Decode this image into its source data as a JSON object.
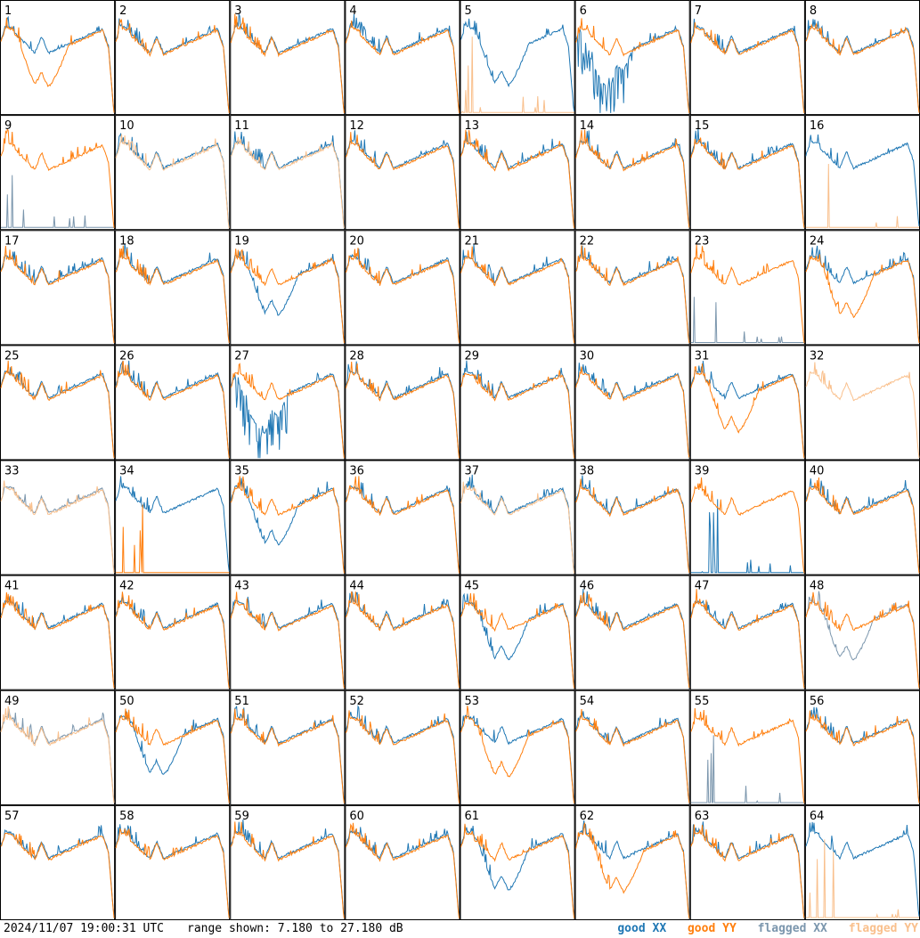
{
  "footer": {
    "timestamp": "2024/11/07 19:00:31 UTC",
    "range_text": "range shown: 7.180 to 27.180 dB"
  },
  "legend": [
    {
      "label": "good XX",
      "color": "#1f77b4"
    },
    {
      "label": "good YY",
      "color": "#ff7f0e"
    },
    {
      "label": "flagged XX",
      "color": "#7b96ad"
    },
    {
      "label": "flagged YY",
      "color": "#f9c08d"
    }
  ],
  "chart_data": {
    "type": "line",
    "grid": {
      "rows": 8,
      "cols": 8
    },
    "ylim": [
      7.18,
      27.18
    ],
    "yunit": "dB",
    "series_styles": {
      "good_xx": "#1f77b4",
      "good_yy": "#ff7f0e",
      "flagged_xx": "#7b96ad",
      "flagged_yy": "#f9c08d"
    },
    "panels": [
      {
        "id": 1,
        "xx": "normal",
        "yy": "dip"
      },
      {
        "id": 2,
        "xx": "normal",
        "yy": "normal"
      },
      {
        "id": 3,
        "xx": "normal",
        "yy": "normal"
      },
      {
        "id": 4,
        "xx": "normal",
        "yy": "normal"
      },
      {
        "id": 5,
        "xx": "dip",
        "yy": "flagged_flat"
      },
      {
        "id": 6,
        "xx": "dip_noisy",
        "yy": "normal"
      },
      {
        "id": 7,
        "xx": "normal",
        "yy": "normal"
      },
      {
        "id": 8,
        "xx": "normal",
        "yy": "normal"
      },
      {
        "id": 9,
        "xx": "flagged_flat",
        "yy": "normal"
      },
      {
        "id": 10,
        "xx": "normal",
        "yy": "flagged_normal"
      },
      {
        "id": 11,
        "xx": "normal",
        "yy": "flagged_normal"
      },
      {
        "id": 12,
        "xx": "normal",
        "yy": "normal"
      },
      {
        "id": 13,
        "xx": "normal",
        "yy": "normal"
      },
      {
        "id": 14,
        "xx": "normal",
        "yy": "normal"
      },
      {
        "id": 15,
        "xx": "normal",
        "yy": "normal"
      },
      {
        "id": 16,
        "xx": "normal",
        "yy": "flagged_flat"
      },
      {
        "id": 17,
        "xx": "normal",
        "yy": "normal"
      },
      {
        "id": 18,
        "xx": "normal",
        "yy": "normal"
      },
      {
        "id": 19,
        "xx": "dip",
        "yy": "normal"
      },
      {
        "id": 20,
        "xx": "normal",
        "yy": "normal"
      },
      {
        "id": 21,
        "xx": "normal",
        "yy": "normal"
      },
      {
        "id": 22,
        "xx": "normal",
        "yy": "normal"
      },
      {
        "id": 23,
        "xx": "flagged_flat",
        "yy": "normal"
      },
      {
        "id": 24,
        "xx": "normal",
        "yy": "dip"
      },
      {
        "id": 25,
        "xx": "normal",
        "yy": "normal"
      },
      {
        "id": 26,
        "xx": "normal",
        "yy": "normal"
      },
      {
        "id": 27,
        "xx": "dip_noisy",
        "yy": "normal"
      },
      {
        "id": 28,
        "xx": "normal",
        "yy": "normal"
      },
      {
        "id": 29,
        "xx": "normal",
        "yy": "normal"
      },
      {
        "id": 30,
        "xx": "normal",
        "yy": "normal"
      },
      {
        "id": 31,
        "xx": "normal",
        "yy": "dip"
      },
      {
        "id": 32,
        "xx": "none",
        "yy": "flagged_normal"
      },
      {
        "id": 33,
        "xx": "flagged_normal",
        "yy": "flagged_normal"
      },
      {
        "id": 34,
        "xx": "normal",
        "yy": "flat"
      },
      {
        "id": 35,
        "xx": "dip",
        "yy": "normal"
      },
      {
        "id": 36,
        "xx": "normal",
        "yy": "normal"
      },
      {
        "id": 37,
        "xx": "normal",
        "yy": "flagged_normal"
      },
      {
        "id": 38,
        "xx": "normal",
        "yy": "normal"
      },
      {
        "id": 39,
        "xx": "flat",
        "yy": "normal"
      },
      {
        "id": 40,
        "xx": "normal",
        "yy": "normal"
      },
      {
        "id": 41,
        "xx": "normal",
        "yy": "normal"
      },
      {
        "id": 42,
        "xx": "normal",
        "yy": "normal"
      },
      {
        "id": 43,
        "xx": "normal",
        "yy": "normal"
      },
      {
        "id": 44,
        "xx": "normal",
        "yy": "normal"
      },
      {
        "id": 45,
        "xx": "dip",
        "yy": "normal"
      },
      {
        "id": 46,
        "xx": "normal",
        "yy": "normal"
      },
      {
        "id": 47,
        "xx": "normal",
        "yy": "normal"
      },
      {
        "id": 48,
        "xx": "flagged_dip",
        "yy": "normal"
      },
      {
        "id": 49,
        "xx": "flagged_normal",
        "yy": "flagged_normal"
      },
      {
        "id": 50,
        "xx": "dip",
        "yy": "normal"
      },
      {
        "id": 51,
        "xx": "normal",
        "yy": "normal"
      },
      {
        "id": 52,
        "xx": "normal",
        "yy": "normal"
      },
      {
        "id": 53,
        "xx": "normal",
        "yy": "dip"
      },
      {
        "id": 54,
        "xx": "normal",
        "yy": "normal"
      },
      {
        "id": 55,
        "xx": "flagged_flat",
        "yy": "normal"
      },
      {
        "id": 56,
        "xx": "normal",
        "yy": "normal"
      },
      {
        "id": 57,
        "xx": "normal",
        "yy": "normal"
      },
      {
        "id": 58,
        "xx": "normal",
        "yy": "normal"
      },
      {
        "id": 59,
        "xx": "normal",
        "yy": "normal"
      },
      {
        "id": 60,
        "xx": "normal",
        "yy": "normal"
      },
      {
        "id": 61,
        "xx": "dip",
        "yy": "normal"
      },
      {
        "id": 62,
        "xx": "normal",
        "yy": "dip"
      },
      {
        "id": 63,
        "xx": "normal",
        "yy": "normal"
      },
      {
        "id": 64,
        "xx": "normal",
        "yy": "flagged_flat"
      }
    ]
  }
}
